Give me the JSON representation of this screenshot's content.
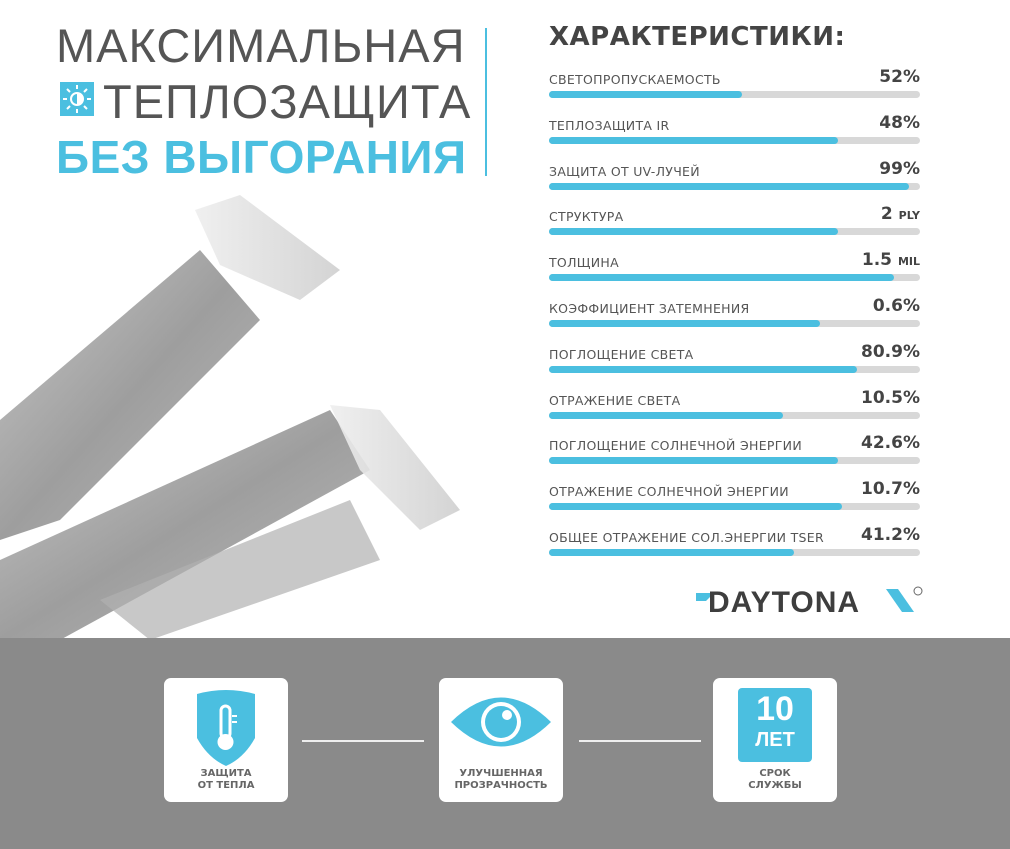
{
  "title": {
    "line1": "МАКСИМАЛЬНАЯ",
    "line2": "ТЕПЛОЗАЩИТА",
    "line3": "БЕЗ ВЫГОРАНИЯ",
    "icon": "sun-half-icon"
  },
  "specs": {
    "title": "ХАРАКТЕРИСТИКИ:",
    "items": [
      {
        "label": "СВЕТОПРОПУСКАЕМОСТЬ",
        "value": "52%",
        "unit": "",
        "fill": 0.52
      },
      {
        "label": "ТЕПЛОЗАЩИТА IR",
        "value": "48%",
        "unit": "",
        "fill": 0.78
      },
      {
        "label": "ЗАЩИТА ОТ UV-ЛУЧЕЙ",
        "value": "99%",
        "unit": "",
        "fill": 0.97
      },
      {
        "label": "СТРУКТУРА",
        "value": "2",
        "unit": "PLY",
        "fill": 0.78
      },
      {
        "label": "ТОЛЩИНА",
        "value": "1.5",
        "unit": "MIL",
        "fill": 0.93
      },
      {
        "label": "КОЭФФИЦИЕНТ ЗАТЕМНЕНИЯ",
        "value": "0.6%",
        "unit": "",
        "fill": 0.73
      },
      {
        "label": "ПОГЛОЩЕНИЕ СВЕТА",
        "value": "80.9%",
        "unit": "",
        "fill": 0.83
      },
      {
        "label": "ОТРАЖЕНИЕ СВЕТА",
        "value": "10.5%",
        "unit": "",
        "fill": 0.63
      },
      {
        "label": "ПОГЛОЩЕНИЕ СОЛНЕЧНОЙ ЭНЕРГИИ",
        "value": "42.6%",
        "unit": "",
        "fill": 0.78
      },
      {
        "label": "ОТРАЖЕНИЕ СОЛНЕЧНОЙ ЭНЕРГИИ",
        "value": "10.7%",
        "unit": "",
        "fill": 0.79
      },
      {
        "label": "ОБЩЕЕ ОТРАЖЕНИЕ СОЛ.ЭНЕРГИИ TSER",
        "value": "41.2%",
        "unit": "",
        "fill": 0.66
      }
    ]
  },
  "brand": {
    "logo": "DAYTONA",
    "registered": "®"
  },
  "features": [
    {
      "icon": "shield-thermometer-icon",
      "line1": "ЗАЩИТА",
      "line2": "ОТ ТЕПЛА"
    },
    {
      "icon": "eye-icon",
      "line1": "УЛУЧШЕННАЯ",
      "line2": "ПРОЗРАЧНОСТЬ"
    },
    {
      "icon": "years-badge-icon",
      "badge_num": "10",
      "badge_word": "ЛЕТ",
      "line1": "СРОК",
      "line2": "СЛУЖБЫ"
    }
  ],
  "colors": {
    "accent": "#4bbfe0",
    "text": "#444444",
    "band": "#8a8a8a",
    "track": "#d8d8d8"
  }
}
